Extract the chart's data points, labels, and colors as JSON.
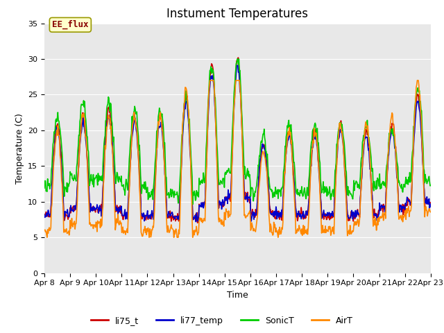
{
  "title": "Instument Temperatures",
  "xlabel": "Time",
  "ylabel": "Temperature (C)",
  "ylim": [
    0,
    35
  ],
  "yticks": [
    0,
    5,
    10,
    15,
    20,
    25,
    30,
    35
  ],
  "x_labels": [
    "Apr 8",
    "Apr 9",
    "Apr 10",
    "Apr 11",
    "Apr 12",
    "Apr 13",
    "Apr 14",
    "Apr 15",
    "Apr 16",
    "Apr 17",
    "Apr 18",
    "Apr 19",
    "Apr 20",
    "Apr 21",
    "Apr 22",
    "Apr 23"
  ],
  "series": {
    "li75_t": {
      "color": "#cc0000",
      "lw": 1.2
    },
    "li77_temp": {
      "color": "#0000cc",
      "lw": 1.2
    },
    "SonicT": {
      "color": "#00cc00",
      "lw": 1.2
    },
    "AirT": {
      "color": "#ff8800",
      "lw": 1.2
    }
  },
  "annotation": {
    "text": "EE_flux",
    "facecolor": "#ffffcc",
    "edgecolor": "#999900",
    "textcolor": "#880000"
  },
  "bg_color": "#e8e8e8",
  "fig_bg": "#ffffff",
  "legend_labels": [
    "li75_t",
    "li77_temp",
    "SonicT",
    "AirT"
  ],
  "legend_colors": [
    "#cc0000",
    "#0000cc",
    "#00cc00",
    "#ff8800"
  ],
  "title_fontsize": 12,
  "axis_label_fontsize": 9,
  "tick_fontsize": 8
}
